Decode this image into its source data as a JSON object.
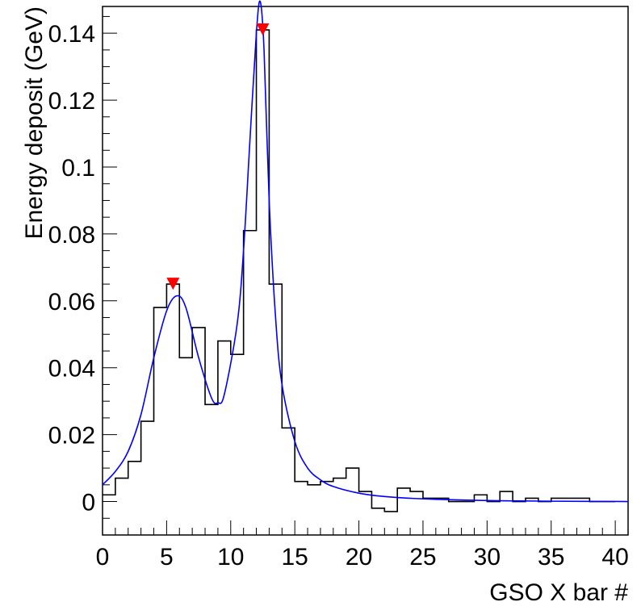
{
  "chart_data": {
    "type": "histogram",
    "xlabel": "GSO X bar #",
    "ylabel": "Energy deposit (GeV)",
    "xlim": [
      0,
      41
    ],
    "ylim": [
      -0.01,
      0.148
    ],
    "x_ticks": [
      0,
      5,
      10,
      15,
      20,
      25,
      30,
      35,
      40
    ],
    "x_tick_labels": [
      "0",
      "5",
      "10",
      "15",
      "20",
      "25",
      "30",
      "35",
      "40"
    ],
    "y_ticks": [
      0,
      0.02,
      0.04,
      0.06,
      0.08,
      0.1,
      0.12,
      0.14
    ],
    "y_tick_labels": [
      "0",
      "0.02",
      "0.04",
      "0.06",
      "0.08",
      "0.1",
      "0.12",
      "0.14"
    ],
    "grid": false,
    "histogram": {
      "color": "#000000",
      "bin_edges": [
        0,
        1,
        2,
        3,
        4,
        5,
        6,
        7,
        8,
        9,
        10,
        11,
        12,
        13,
        14,
        15,
        16,
        17,
        18,
        19,
        20,
        21,
        22,
        23,
        24,
        25,
        26,
        27,
        28,
        29,
        30,
        31,
        32,
        33,
        34,
        35,
        36,
        37,
        38,
        39,
        40
      ],
      "values": [
        0.002,
        0.007,
        0.012,
        0.024,
        0.058,
        0.065,
        0.043,
        0.052,
        0.029,
        0.048,
        0.044,
        0.081,
        0.141,
        0.065,
        0.022,
        0.006,
        0.005,
        0.006,
        0.007,
        0.01,
        0.003,
        -0.002,
        -0.003,
        0.004,
        0.003,
        0.001,
        0.001,
        0.0,
        0.0,
        0.002,
        0.0,
        0.003,
        0.0,
        0.001,
        0.0,
        0.001,
        0.001,
        0.001,
        0.0,
        0.0
      ]
    },
    "fit_curve": {
      "color": "#0000ff",
      "x": [
        0,
        1,
        2,
        3,
        4,
        5,
        5.8,
        6.5,
        7.5,
        8.5,
        9.0,
        9.5,
        10.5,
        11,
        11.5,
        12,
        12.3,
        12.6,
        13,
        13.5,
        14,
        15,
        16,
        17,
        18,
        20,
        22,
        25,
        30,
        35,
        41
      ],
      "y": [
        0.005,
        0.009,
        0.015,
        0.026,
        0.043,
        0.057,
        0.0615,
        0.058,
        0.043,
        0.031,
        0.0295,
        0.032,
        0.053,
        0.075,
        0.108,
        0.14,
        0.1495,
        0.135,
        0.09,
        0.055,
        0.035,
        0.018,
        0.01,
        0.0065,
        0.0045,
        0.0025,
        0.0015,
        0.0008,
        0.0003,
        0.0001,
        0.0
      ]
    },
    "peak_markers": {
      "color": "#ff0000",
      "shape": "downward-triangle",
      "points": [
        {
          "x": 5.5,
          "y": 0.065
        },
        {
          "x": 12.5,
          "y": 0.141
        }
      ]
    }
  }
}
